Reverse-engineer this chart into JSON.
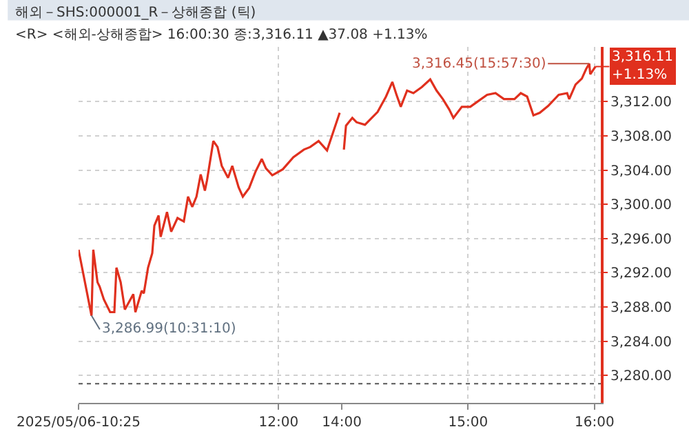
{
  "chart_data": [
    {
      "type": "line",
      "title": "해외－SHS:000001_R－상해종합 (틱)",
      "subtitle": "<R> <해외-상해종합> 16:00:30 종:3,316.11 ▲37.08 +1.13%",
      "x": [
        "2025-05-06T10:25",
        "2025-05-06T10:31:10",
        "2025-05-06T10:32",
        "2025-05-06T10:34",
        "2025-05-06T10:35",
        "2025-05-06T10:37",
        "2025-05-06T10:40",
        "2025-05-06T10:42",
        "2025-05-06T10:43",
        "2025-05-06T10:45",
        "2025-05-06T10:47",
        "2025-05-06T10:51",
        "2025-05-06T10:52",
        "2025-05-06T10:55",
        "2025-05-06T10:56",
        "2025-05-06T10:58",
        "2025-05-06T11:00",
        "2025-05-06T11:01",
        "2025-05-06T11:03",
        "2025-05-06T11:04",
        "2025-05-06T11:07",
        "2025-05-06T11:09",
        "2025-05-06T11:12",
        "2025-05-06T11:15",
        "2025-05-06T11:17",
        "2025-05-06T11:19",
        "2025-05-06T11:21",
        "2025-05-06T11:23",
        "2025-05-06T11:25",
        "2025-05-06T11:26",
        "2025-05-06T11:29",
        "2025-05-06T11:31",
        "2025-05-06T11:33",
        "2025-05-06T11:36",
        "2025-05-06T11:38",
        "2025-05-06T11:41",
        "2025-05-06T11:43",
        "2025-05-06T11:46",
        "2025-05-06T11:49",
        "2025-05-06T11:52",
        "2025-05-06T11:54",
        "2025-05-06T11:57",
        "2025-05-06T12:02",
        "2025-05-06T12:07",
        "2025-05-06T12:12",
        "2025-05-06T12:15",
        "2025-05-06T12:19",
        "2025-05-06T12:23",
        "2025-05-06T12:26",
        "2025-05-06T12:29"
      ],
      "series": [
        {
          "color": "#e0301e",
          "values": [
            3294.7,
            3286.99,
            3294.7,
            3290.9,
            3290.4,
            3288.9,
            3287.4,
            3287.4,
            3292.6,
            3290.9,
            3287.7,
            3289.5,
            3287.4,
            3289.9,
            3289.6,
            3292.6,
            3294.3,
            3297.5,
            3298.7,
            3296.2,
            3299.1,
            3296.8,
            3298.4,
            3298.0,
            3300.9,
            3299.7,
            3300.9,
            3303.5,
            3301.6,
            3302.8,
            3307.4,
            3306.7,
            3304.5,
            3303.1,
            3304.5,
            3302.0,
            3300.9,
            3301.9,
            3303.8,
            3305.3,
            3304.2,
            3303.4,
            3304.1,
            3305.5,
            3306.4,
            3306.7,
            3307.4,
            3306.3,
            3308.5,
            3310.7
          ]
        }
      ],
      "xlim": [
        "2025-05-06T10:25",
        "2025-05-06T12:30"
      ],
      "xticks": [
        {
          "value": "2025-05-06T10:25",
          "label": "2025/05/06-10:25"
        },
        {
          "value": "2025-05-06T12:00",
          "label": "12:00"
        }
      ],
      "ylim": [
        3276.8,
        3318.4
      ],
      "yticks": [
        3280,
        3284,
        3288,
        3292,
        3296,
        3300,
        3304,
        3308,
        3312
      ],
      "tick_labels": "x",
      "ref_lines": [
        {
          "axis": "y",
          "value": 3279.03,
          "color": "#555555",
          "line_style": "dotted"
        }
      ],
      "annotations": [
        {
          "text": "3,286.99(10:31:10)",
          "x": "2025-05-06T10:31:10",
          "y": 3286.99
        }
      ],
      "grid": true,
      "legend": false,
      "marker": "none",
      "line_style": "solid"
    },
    {
      "type": "line",
      "x": [
        "2025-05-06T14:01",
        "2025-05-06T14:02",
        "2025-05-06T14:05",
        "2025-05-06T14:07",
        "2025-05-06T14:11",
        "2025-05-06T14:17",
        "2025-05-06T14:21",
        "2025-05-06T14:24",
        "2025-05-06T14:26",
        "2025-05-06T14:28",
        "2025-05-06T14:31",
        "2025-05-06T14:34",
        "2025-05-06T14:38",
        "2025-05-06T14:42",
        "2025-05-06T14:45",
        "2025-05-06T14:48",
        "2025-05-06T14:51",
        "2025-05-06T14:53",
        "2025-05-06T14:57",
        "2025-05-06T15:01",
        "2025-05-06T15:05",
        "2025-05-06T15:09",
        "2025-05-06T15:13",
        "2025-05-06T15:17",
        "2025-05-06T15:22",
        "2025-05-06T15:25",
        "2025-05-06T15:28",
        "2025-05-06T15:31",
        "2025-05-06T15:34",
        "2025-05-06T15:38",
        "2025-05-06T15:43",
        "2025-05-06T15:47",
        "2025-05-06T15:48",
        "2025-05-06T15:51",
        "2025-05-06T15:54",
        "2025-05-06T15:56",
        "2025-05-06T15:57:30",
        "2025-05-06T15:58",
        "2025-05-06T16:00:30"
      ],
      "series": [
        {
          "color": "#e0301e",
          "values": [
            3306.4,
            3309.2,
            3310.1,
            3309.6,
            3309.3,
            3310.8,
            3312.6,
            3314.3,
            3312.8,
            3311.4,
            3313.3,
            3313.0,
            3313.7,
            3314.6,
            3313.3,
            3312.3,
            3311.1,
            3310.1,
            3311.4,
            3311.4,
            3312.1,
            3312.8,
            3313.0,
            3312.3,
            3312.3,
            3313.0,
            3312.6,
            3310.4,
            3310.7,
            3311.5,
            3312.8,
            3313.0,
            3312.3,
            3314.0,
            3314.7,
            3315.8,
            3316.45,
            3315.2,
            3316.11
          ]
        }
      ],
      "xlim": [
        "2025-05-06T14:00",
        "2025-05-06T16:03"
      ],
      "xticks": [
        {
          "value": "2025-05-06T14:00",
          "label": "14:00"
        },
        {
          "value": "2025-05-06T15:00",
          "label": "15:00"
        },
        {
          "value": "2025-05-06T16:00",
          "label": "16:00"
        }
      ],
      "ylim": [
        3276.8,
        3318.4
      ],
      "yticks": [
        {
          "value": 3280,
          "label": "3,280.00"
        },
        {
          "value": 3284,
          "label": "3,284.00"
        },
        {
          "value": 3288,
          "label": "3,288.00"
        },
        {
          "value": 3292,
          "label": "3,292.00"
        },
        {
          "value": 3296,
          "label": "3,296.00"
        },
        {
          "value": 3300,
          "label": "3,300.00"
        },
        {
          "value": 3304,
          "label": "3,304.00"
        },
        {
          "value": 3308,
          "label": "3,308.00"
        },
        {
          "value": 3312,
          "label": "3,312.00"
        }
      ],
      "ref_lines": [
        {
          "axis": "y",
          "value": 3279.03,
          "color": "#555555",
          "line_style": "dotted"
        }
      ],
      "annotations": [
        {
          "text": "3,316.45(15:57:30)",
          "x": "2025-05-06T15:57:30",
          "y": 3316.45
        },
        {
          "text": "3,316.11\n+1.13%",
          "x": "2025-05-06T16:00:30",
          "y": 3316.11
        }
      ],
      "grid": true,
      "legend": false,
      "marker": "none",
      "line_style": "solid"
    }
  ]
}
